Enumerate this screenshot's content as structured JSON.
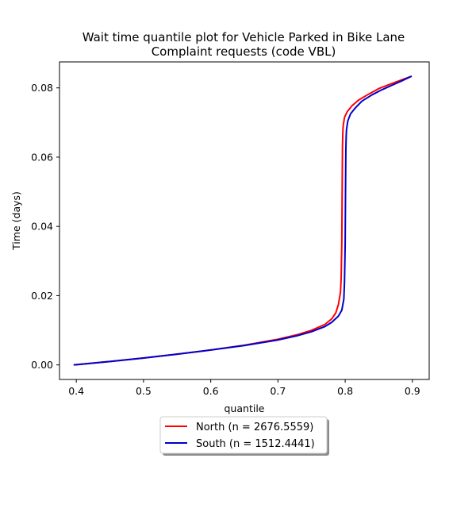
{
  "chart_data": {
    "type": "line",
    "title": [
      "Wait time quantile plot for Vehicle Parked in Bike Lane",
      "Complaint  requests (code VBL)"
    ],
    "xlabel": "quantile",
    "ylabel": "Time (days)",
    "xlim": [
      0.375,
      0.925
    ],
    "ylim": [
      -0.0042,
      0.0875
    ],
    "xticks": [
      0.4,
      0.5,
      0.6,
      0.7,
      0.8,
      0.9
    ],
    "xtick_labels": [
      "0.4",
      "0.5",
      "0.6",
      "0.7",
      "0.8",
      "0.9"
    ],
    "yticks": [
      0.0,
      0.02,
      0.04,
      0.06,
      0.08
    ],
    "ytick_labels": [
      "0.00",
      "0.02",
      "0.04",
      "0.06",
      "0.08"
    ],
    "grid": false,
    "legend_position": "below-center",
    "series": [
      {
        "name": "North (n = 2676.5559)",
        "color": "#ff0000",
        "x": [
          0.397,
          0.45,
          0.5,
          0.55,
          0.6,
          0.65,
          0.7,
          0.73,
          0.75,
          0.77,
          0.78,
          0.786,
          0.79,
          0.793,
          0.794,
          0.795,
          0.7955,
          0.796,
          0.7965,
          0.797,
          0.799,
          0.803,
          0.81,
          0.82,
          0.835,
          0.85,
          0.87,
          0.885,
          0.898
        ],
        "y": [
          0.0,
          0.001,
          0.002,
          0.0031,
          0.0043,
          0.0057,
          0.0074,
          0.0088,
          0.01,
          0.0117,
          0.0133,
          0.015,
          0.0175,
          0.021,
          0.025,
          0.035,
          0.05,
          0.063,
          0.067,
          0.069,
          0.0715,
          0.0731,
          0.0748,
          0.0765,
          0.0782,
          0.0798,
          0.0813,
          0.0824,
          0.0833
        ]
      },
      {
        "name": "South (n = 1512.4441)",
        "color": "#0000cc",
        "x": [
          0.397,
          0.45,
          0.5,
          0.55,
          0.6,
          0.65,
          0.7,
          0.73,
          0.75,
          0.77,
          0.78,
          0.79,
          0.795,
          0.798,
          0.799,
          0.8,
          0.8005,
          0.801,
          0.8015,
          0.802,
          0.804,
          0.808,
          0.815,
          0.825,
          0.84,
          0.855,
          0.87,
          0.885,
          0.898
        ],
        "y": [
          0.0,
          0.001,
          0.002,
          0.0031,
          0.0043,
          0.0056,
          0.0072,
          0.0085,
          0.0096,
          0.0111,
          0.0123,
          0.0141,
          0.0158,
          0.019,
          0.024,
          0.035,
          0.05,
          0.062,
          0.066,
          0.068,
          0.0705,
          0.0725,
          0.0742,
          0.0762,
          0.078,
          0.0795,
          0.0808,
          0.0821,
          0.0833
        ]
      }
    ]
  }
}
